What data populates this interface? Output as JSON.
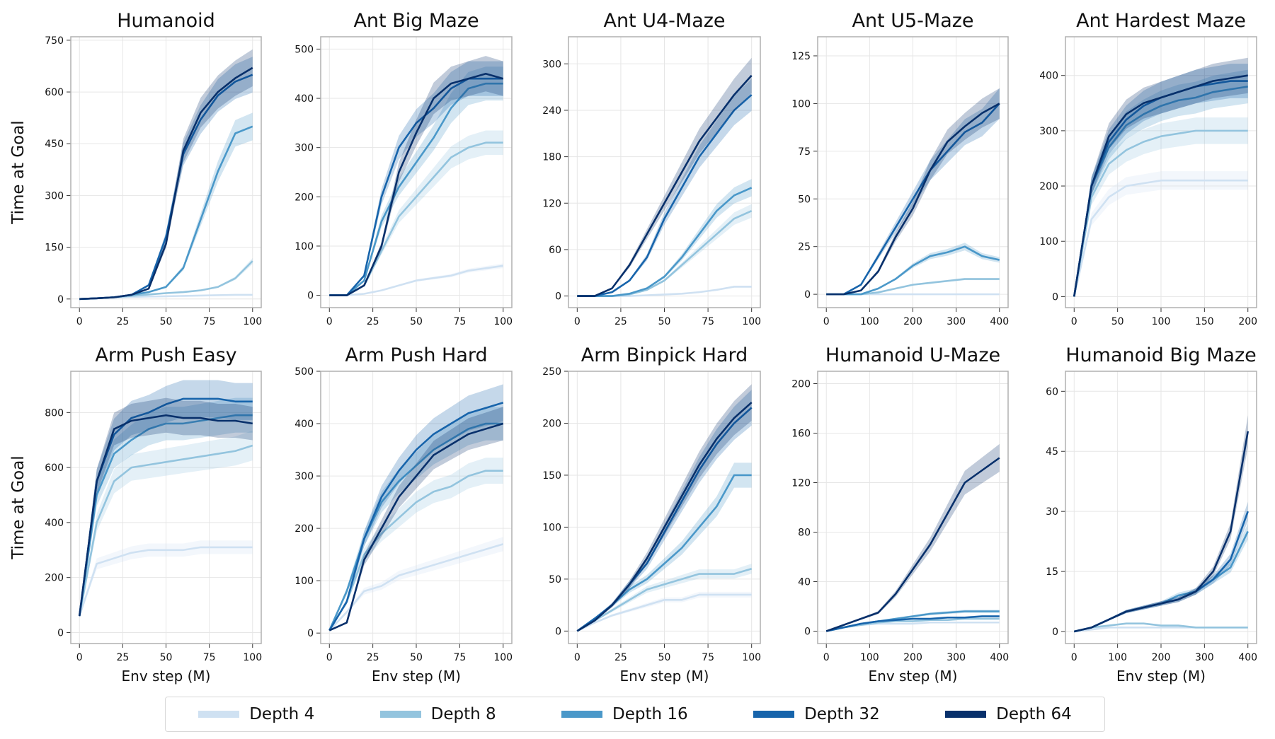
{
  "chart_data": [
    {
      "type": "line",
      "title": "Humanoid",
      "xlabel": "",
      "ylabel": "Time at Goal",
      "x": [
        0,
        10,
        20,
        30,
        40,
        50,
        60,
        70,
        80,
        90,
        100
      ],
      "xlim": [
        -5,
        105
      ],
      "ylim": [
        -25,
        760
      ],
      "xticks": [
        0,
        25,
        50,
        75,
        100
      ],
      "yticks": [
        0,
        150,
        300,
        450,
        600,
        750
      ],
      "grid": true,
      "series": [
        {
          "name": "Depth 4",
          "values": [
            0,
            2,
            4,
            6,
            7,
            8,
            9,
            10,
            11,
            12,
            12
          ]
        },
        {
          "name": "Depth 8",
          "values": [
            0,
            2,
            5,
            9,
            13,
            17,
            20,
            25,
            35,
            60,
            110
          ]
        },
        {
          "name": "Depth 16",
          "values": [
            0,
            2,
            5,
            12,
            20,
            35,
            90,
            230,
            370,
            480,
            500
          ]
        },
        {
          "name": "Depth 32",
          "values": [
            0,
            2,
            5,
            12,
            40,
            180,
            420,
            520,
            590,
            630,
            650
          ]
        },
        {
          "name": "Depth 64",
          "values": [
            0,
            2,
            5,
            12,
            30,
            160,
            430,
            540,
            600,
            640,
            670
          ]
        }
      ]
    },
    {
      "type": "line",
      "title": "Ant Big Maze",
      "xlabel": "",
      "ylabel": "",
      "x": [
        0,
        10,
        20,
        30,
        40,
        50,
        60,
        70,
        80,
        90,
        100
      ],
      "xlim": [
        -5,
        105
      ],
      "ylim": [
        -25,
        525
      ],
      "xticks": [
        0,
        25,
        50,
        75,
        100
      ],
      "yticks": [
        0,
        100,
        200,
        300,
        400,
        500
      ],
      "grid": true,
      "series": [
        {
          "name": "Depth 4",
          "values": [
            0,
            0,
            3,
            10,
            20,
            30,
            35,
            40,
            50,
            55,
            60
          ]
        },
        {
          "name": "Depth 8",
          "values": [
            0,
            0,
            20,
            90,
            160,
            200,
            240,
            280,
            300,
            310,
            310
          ]
        },
        {
          "name": "Depth 16",
          "values": [
            0,
            0,
            30,
            150,
            220,
            270,
            320,
            380,
            420,
            430,
            430
          ]
        },
        {
          "name": "Depth 32",
          "values": [
            0,
            0,
            40,
            200,
            300,
            350,
            380,
            420,
            440,
            440,
            440
          ]
        },
        {
          "name": "Depth 64",
          "values": [
            0,
            0,
            20,
            100,
            250,
            330,
            400,
            430,
            440,
            450,
            440
          ]
        }
      ]
    },
    {
      "type": "line",
      "title": "Ant U4-Maze",
      "xlabel": "",
      "ylabel": "",
      "x": [
        0,
        10,
        20,
        30,
        40,
        50,
        60,
        70,
        80,
        90,
        100
      ],
      "xlim": [
        -5,
        105
      ],
      "ylim": [
        -15,
        335
      ],
      "xticks": [
        0,
        25,
        50,
        75,
        100
      ],
      "yticks": [
        0,
        60,
        120,
        180,
        240,
        300
      ],
      "grid": true,
      "series": [
        {
          "name": "Depth 4",
          "values": [
            0,
            0,
            0,
            0,
            1,
            2,
            3,
            5,
            8,
            12,
            12
          ]
        },
        {
          "name": "Depth 8",
          "values": [
            0,
            0,
            0,
            2,
            8,
            20,
            40,
            60,
            80,
            100,
            110
          ]
        },
        {
          "name": "Depth 16",
          "values": [
            0,
            0,
            0,
            3,
            10,
            25,
            50,
            80,
            110,
            130,
            140
          ]
        },
        {
          "name": "Depth 32",
          "values": [
            0,
            0,
            5,
            20,
            50,
            100,
            140,
            180,
            210,
            240,
            260
          ]
        },
        {
          "name": "Depth 64",
          "values": [
            0,
            0,
            10,
            40,
            80,
            120,
            160,
            200,
            230,
            260,
            285
          ]
        }
      ]
    },
    {
      "type": "line",
      "title": "Ant U5-Maze",
      "xlabel": "",
      "ylabel": "",
      "x": [
        0,
        40,
        80,
        120,
        160,
        200,
        240,
        280,
        320,
        360,
        400
      ],
      "xlim": [
        -20,
        420
      ],
      "ylim": [
        -7,
        135
      ],
      "xticks": [
        0,
        100,
        200,
        300,
        400
      ],
      "yticks": [
        0,
        25,
        50,
        75,
        100,
        125
      ],
      "grid": true,
      "series": [
        {
          "name": "Depth 4",
          "values": [
            0,
            0,
            0,
            0,
            0,
            0,
            0,
            0,
            0,
            0,
            0
          ]
        },
        {
          "name": "Depth 8",
          "values": [
            0,
            0,
            0,
            1,
            3,
            5,
            6,
            7,
            8,
            8,
            8
          ]
        },
        {
          "name": "Depth 16",
          "values": [
            0,
            0,
            0,
            3,
            8,
            15,
            20,
            22,
            25,
            20,
            18
          ]
        },
        {
          "name": "Depth 32",
          "values": [
            0,
            0,
            5,
            20,
            35,
            50,
            65,
            75,
            85,
            90,
            100
          ]
        },
        {
          "name": "Depth 64",
          "values": [
            0,
            0,
            2,
            12,
            30,
            45,
            65,
            80,
            88,
            95,
            100
          ]
        }
      ]
    },
    {
      "type": "line",
      "title": "Ant Hardest Maze",
      "xlabel": "",
      "ylabel": "",
      "x": [
        0,
        20,
        40,
        60,
        80,
        100,
        120,
        140,
        160,
        180,
        200
      ],
      "xlim": [
        -10,
        210
      ],
      "ylim": [
        -20,
        470
      ],
      "xticks": [
        0,
        50,
        100,
        150,
        200
      ],
      "yticks": [
        0,
        100,
        200,
        300,
        400
      ],
      "grid": true,
      "series": [
        {
          "name": "Depth 4",
          "values": [
            0,
            140,
            180,
            200,
            205,
            210,
            210,
            210,
            210,
            210,
            210
          ]
        },
        {
          "name": "Depth 8",
          "values": [
            0,
            180,
            240,
            265,
            280,
            290,
            295,
            300,
            300,
            300,
            300
          ]
        },
        {
          "name": "Depth 16",
          "values": [
            0,
            200,
            270,
            310,
            330,
            345,
            355,
            360,
            370,
            375,
            380
          ]
        },
        {
          "name": "Depth 32",
          "values": [
            0,
            200,
            280,
            320,
            345,
            360,
            370,
            380,
            385,
            390,
            390
          ]
        },
        {
          "name": "Depth 64",
          "values": [
            0,
            200,
            290,
            330,
            350,
            360,
            370,
            380,
            390,
            395,
            400
          ]
        }
      ]
    },
    {
      "type": "line",
      "title": "Arm Push Easy",
      "xlabel": "Env step (M)",
      "ylabel": "Time at Goal",
      "x": [
        0,
        10,
        20,
        30,
        40,
        50,
        60,
        70,
        80,
        90,
        100
      ],
      "xlim": [
        -5,
        105
      ],
      "ylim": [
        -40,
        950
      ],
      "xticks": [
        0,
        25,
        50,
        75,
        100
      ],
      "yticks": [
        0,
        200,
        400,
        600,
        800
      ],
      "grid": true,
      "series": [
        {
          "name": "Depth 4",
          "values": [
            60,
            250,
            270,
            290,
            300,
            300,
            300,
            310,
            310,
            310,
            310
          ]
        },
        {
          "name": "Depth 8",
          "values": [
            60,
            400,
            550,
            600,
            610,
            620,
            630,
            640,
            650,
            660,
            680
          ]
        },
        {
          "name": "Depth 16",
          "values": [
            60,
            500,
            650,
            700,
            740,
            760,
            760,
            770,
            780,
            790,
            790
          ]
        },
        {
          "name": "Depth 32",
          "values": [
            60,
            550,
            720,
            780,
            800,
            830,
            850,
            850,
            850,
            840,
            840
          ]
        },
        {
          "name": "Depth 64",
          "values": [
            60,
            550,
            740,
            770,
            780,
            790,
            780,
            780,
            770,
            770,
            760
          ]
        }
      ]
    },
    {
      "type": "line",
      "title": "Arm Push Hard",
      "xlabel": "Env step (M)",
      "ylabel": "",
      "x": [
        0,
        10,
        20,
        30,
        40,
        50,
        60,
        70,
        80,
        90,
        100
      ],
      "xlim": [
        -5,
        105
      ],
      "ylim": [
        -20,
        500
      ],
      "xticks": [
        0,
        25,
        50,
        75,
        100
      ],
      "yticks": [
        0,
        100,
        200,
        300,
        400,
        500
      ],
      "grid": true,
      "series": [
        {
          "name": "Depth 4",
          "values": [
            5,
            40,
            80,
            90,
            110,
            120,
            130,
            140,
            150,
            160,
            170
          ]
        },
        {
          "name": "Depth 8",
          "values": [
            5,
            60,
            150,
            190,
            220,
            250,
            270,
            280,
            300,
            310,
            310
          ]
        },
        {
          "name": "Depth 16",
          "values": [
            5,
            80,
            180,
            250,
            290,
            320,
            350,
            370,
            390,
            400,
            400
          ]
        },
        {
          "name": "Depth 32",
          "values": [
            5,
            60,
            180,
            260,
            310,
            350,
            380,
            400,
            420,
            430,
            440
          ]
        },
        {
          "name": "Depth 64",
          "values": [
            5,
            20,
            140,
            200,
            260,
            300,
            340,
            360,
            380,
            390,
            400
          ]
        }
      ]
    },
    {
      "type": "line",
      "title": "Arm Binpick Hard",
      "xlabel": "Env step (M)",
      "ylabel": "",
      "x": [
        0,
        10,
        20,
        30,
        40,
        50,
        60,
        70,
        80,
        90,
        100
      ],
      "xlim": [
        -5,
        105
      ],
      "ylim": [
        -12,
        250
      ],
      "xticks": [
        0,
        25,
        50,
        75,
        100
      ],
      "yticks": [
        0,
        50,
        100,
        150,
        200,
        250
      ],
      "grid": true,
      "series": [
        {
          "name": "Depth 4",
          "values": [
            0,
            8,
            15,
            20,
            25,
            30,
            30,
            35,
            35,
            35,
            35
          ]
        },
        {
          "name": "Depth 8",
          "values": [
            0,
            10,
            20,
            30,
            40,
            45,
            50,
            55,
            55,
            55,
            60
          ]
        },
        {
          "name": "Depth 16",
          "values": [
            0,
            12,
            25,
            40,
            50,
            65,
            80,
            100,
            120,
            150,
            150
          ]
        },
        {
          "name": "Depth 32",
          "values": [
            0,
            12,
            25,
            45,
            65,
            95,
            125,
            155,
            180,
            200,
            215
          ]
        },
        {
          "name": "Depth 64",
          "values": [
            0,
            10,
            25,
            45,
            70,
            100,
            130,
            160,
            185,
            205,
            220
          ]
        }
      ]
    },
    {
      "type": "line",
      "title": "Humanoid U-Maze",
      "xlabel": "Env step (M)",
      "ylabel": "",
      "x": [
        0,
        40,
        80,
        120,
        160,
        200,
        240,
        280,
        320,
        360,
        400
      ],
      "xlim": [
        -20,
        420
      ],
      "ylim": [
        -10,
        210
      ],
      "xticks": [
        0,
        100,
        200,
        300,
        400
      ],
      "yticks": [
        0,
        40,
        80,
        120,
        160,
        200
      ],
      "grid": true,
      "series": [
        {
          "name": "Depth 4",
          "values": [
            0,
            3,
            5,
            6,
            6,
            6,
            7,
            7,
            7,
            7,
            7
          ]
        },
        {
          "name": "Depth 8",
          "values": [
            0,
            3,
            5,
            7,
            8,
            8,
            9,
            9,
            10,
            10,
            10
          ]
        },
        {
          "name": "Depth 16",
          "values": [
            0,
            3,
            6,
            8,
            10,
            12,
            14,
            15,
            16,
            16,
            16
          ]
        },
        {
          "name": "Depth 32",
          "values": [
            0,
            3,
            6,
            8,
            9,
            10,
            10,
            11,
            11,
            12,
            12
          ]
        },
        {
          "name": "Depth 64",
          "values": [
            0,
            5,
            10,
            15,
            30,
            50,
            70,
            95,
            120,
            130,
            140
          ]
        }
      ]
    },
    {
      "type": "line",
      "title": "Humanoid Big Maze",
      "xlabel": "Env step (M)",
      "ylabel": "",
      "x": [
        0,
        40,
        80,
        120,
        160,
        200,
        240,
        280,
        320,
        360,
        400
      ],
      "xlim": [
        -20,
        420
      ],
      "ylim": [
        -3,
        65
      ],
      "xticks": [
        0,
        100,
        200,
        300,
        400
      ],
      "yticks": [
        0,
        15,
        30,
        45,
        60
      ],
      "grid": true,
      "series": [
        {
          "name": "Depth 4",
          "values": [
            0,
            0.5,
            1,
            1,
            1,
            1,
            1,
            1,
            1,
            1,
            1
          ]
        },
        {
          "name": "Depth 8",
          "values": [
            0,
            1,
            1.5,
            2,
            2,
            1.5,
            1.5,
            1,
            1,
            1,
            1
          ]
        },
        {
          "name": "Depth 16",
          "values": [
            0,
            1,
            3,
            5,
            6,
            7,
            9,
            10,
            13,
            16,
            25
          ]
        },
        {
          "name": "Depth 32",
          "values": [
            0,
            1,
            3,
            5,
            6,
            7,
            8,
            10,
            13,
            18,
            30
          ]
        },
        {
          "name": "Depth 64",
          "values": [
            0,
            1,
            3,
            5,
            6,
            7,
            8,
            10,
            15,
            25,
            50
          ]
        }
      ]
    }
  ],
  "legend": {
    "placement": "bottom",
    "items": [
      {
        "label": "Depth 4",
        "color": "#cfe1f2"
      },
      {
        "label": "Depth 8",
        "color": "#93c4de"
      },
      {
        "label": "Depth 16",
        "color": "#4a98c9"
      },
      {
        "label": "Depth 32",
        "color": "#1764ab"
      },
      {
        "label": "Depth 64",
        "color": "#08306b"
      }
    ]
  }
}
